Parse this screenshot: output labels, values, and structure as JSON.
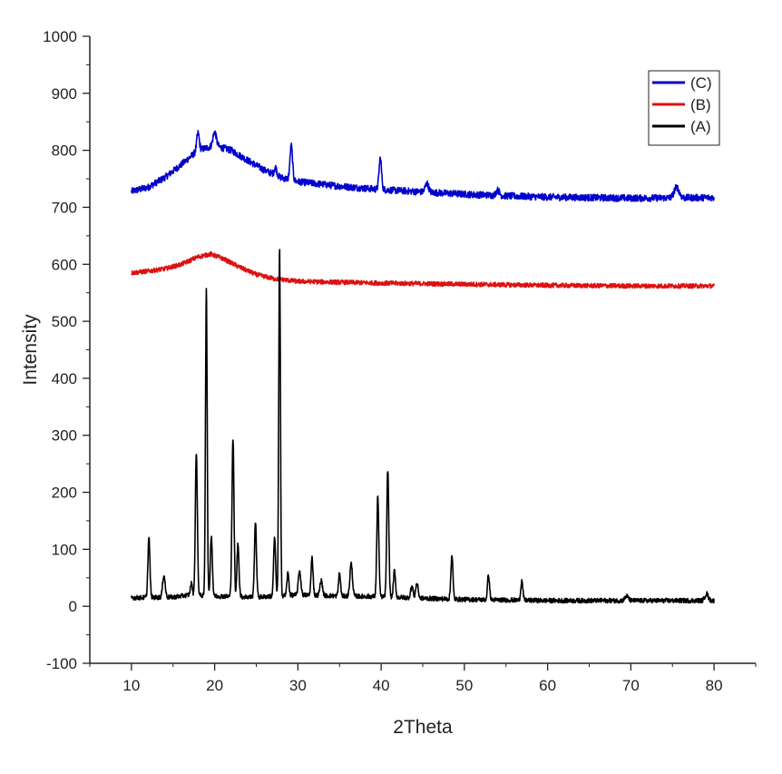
{
  "chart_data": {
    "type": "line",
    "xlabel": "2Theta",
    "ylabel": "Intensity",
    "xlim": [
      5,
      85
    ],
    "ylim": [
      -100,
      1000
    ],
    "xticks": [
      10,
      20,
      30,
      40,
      50,
      60,
      70,
      80
    ],
    "yticks": [
      -100,
      0,
      100,
      200,
      300,
      400,
      500,
      600,
      700,
      800,
      900,
      1000
    ],
    "grid": false,
    "legend_position": "top-right",
    "series": [
      {
        "name": "(C)",
        "color": "#0000cc",
        "noise": 6,
        "baseline": [
          [
            10,
            728
          ],
          [
            12,
            735
          ],
          [
            14,
            752
          ],
          [
            16,
            775
          ],
          [
            18,
            800
          ],
          [
            20,
            808
          ],
          [
            22,
            800
          ],
          [
            24,
            782
          ],
          [
            26,
            765
          ],
          [
            28,
            752
          ],
          [
            30,
            745
          ],
          [
            35,
            737
          ],
          [
            40,
            731
          ],
          [
            45,
            727
          ],
          [
            50,
            723
          ],
          [
            55,
            720
          ],
          [
            60,
            718
          ],
          [
            70,
            716
          ],
          [
            80,
            717
          ]
        ],
        "peaks": [
          [
            18.0,
            830,
            0.15
          ],
          [
            20.0,
            832,
            0.2
          ],
          [
            27.3,
            770,
            0.15
          ],
          [
            29.2,
            808,
            0.15
          ],
          [
            39.9,
            786,
            0.15
          ],
          [
            45.5,
            742,
            0.2
          ],
          [
            54.0,
            730,
            0.2
          ],
          [
            75.5,
            735,
            0.3
          ]
        ]
      },
      {
        "name": "(B)",
        "color": "#dd1111",
        "noise": 4,
        "baseline": [
          [
            10,
            585
          ],
          [
            12,
            588
          ],
          [
            14,
            592
          ],
          [
            16,
            600
          ],
          [
            18,
            613
          ],
          [
            19.5,
            618
          ],
          [
            21,
            610
          ],
          [
            23,
            595
          ],
          [
            25,
            582
          ],
          [
            27,
            575
          ],
          [
            30,
            570
          ],
          [
            40,
            567
          ],
          [
            50,
            565
          ],
          [
            60,
            563
          ],
          [
            70,
            562
          ],
          [
            80,
            562
          ]
        ],
        "peaks": []
      },
      {
        "name": "(A)",
        "color": "#000000",
        "noise": 4,
        "baseline": [
          [
            10,
            15
          ],
          [
            15,
            16
          ],
          [
            17,
            20
          ],
          [
            20,
            18
          ],
          [
            25,
            16
          ],
          [
            30,
            20
          ],
          [
            35,
            18
          ],
          [
            40,
            17
          ],
          [
            45,
            14
          ],
          [
            50,
            12
          ],
          [
            55,
            11
          ],
          [
            60,
            10
          ],
          [
            70,
            10
          ],
          [
            80,
            10
          ]
        ],
        "peaks": [
          [
            12.1,
            120,
            0.12
          ],
          [
            13.9,
            55,
            0.15
          ],
          [
            17.2,
            40,
            0.12
          ],
          [
            17.8,
            270,
            0.12
          ],
          [
            19.0,
            562,
            0.1
          ],
          [
            19.6,
            125,
            0.12
          ],
          [
            22.2,
            295,
            0.12
          ],
          [
            22.8,
            110,
            0.12
          ],
          [
            24.9,
            148,
            0.12
          ],
          [
            27.2,
            120,
            0.12
          ],
          [
            27.8,
            630,
            0.1
          ],
          [
            28.8,
            58,
            0.12
          ],
          [
            30.2,
            62,
            0.15
          ],
          [
            31.7,
            85,
            0.12
          ],
          [
            32.8,
            45,
            0.15
          ],
          [
            35.0,
            58,
            0.12
          ],
          [
            36.4,
            75,
            0.15
          ],
          [
            39.6,
            192,
            0.12
          ],
          [
            40.8,
            240,
            0.12
          ],
          [
            41.6,
            62,
            0.12
          ],
          [
            43.7,
            35,
            0.15
          ],
          [
            44.3,
            40,
            0.15
          ],
          [
            48.5,
            90,
            0.12
          ],
          [
            52.9,
            55,
            0.12
          ],
          [
            56.9,
            45,
            0.12
          ],
          [
            69.5,
            18,
            0.2
          ],
          [
            79.1,
            22,
            0.2
          ]
        ]
      }
    ]
  }
}
